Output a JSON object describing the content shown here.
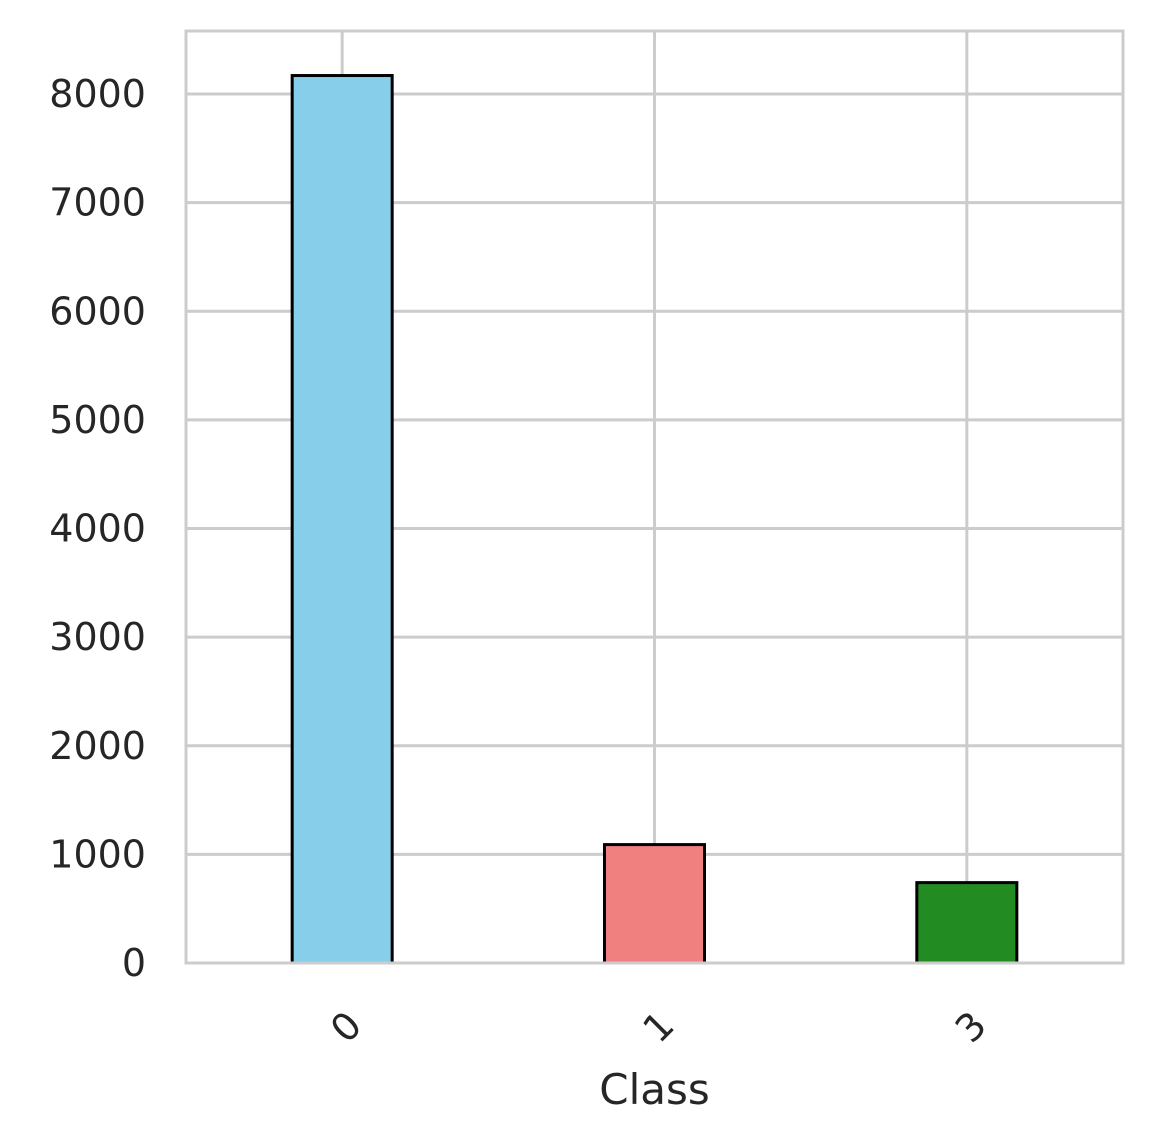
{
  "chart_data": {
    "type": "bar",
    "title": "",
    "xlabel": "Class",
    "ylabel": "",
    "categories": [
      "0",
      "1",
      "3"
    ],
    "values": [
      8170,
      1090,
      740
    ],
    "bar_colors": [
      "#87CEEB",
      "#F08080",
      "#228B22"
    ],
    "edge_color": "#000000",
    "ylim": [
      0,
      8580
    ],
    "yticks": [
      0,
      1000,
      2000,
      3000,
      4000,
      5000,
      6000,
      7000,
      8000
    ],
    "ytick_labels": [
      "0",
      "1000",
      "2000",
      "3000",
      "4000",
      "5000",
      "6000",
      "7000",
      "8000"
    ],
    "xtick_rotation": -45,
    "grid": true,
    "grid_color": "#cccccc",
    "legend": "none"
  }
}
